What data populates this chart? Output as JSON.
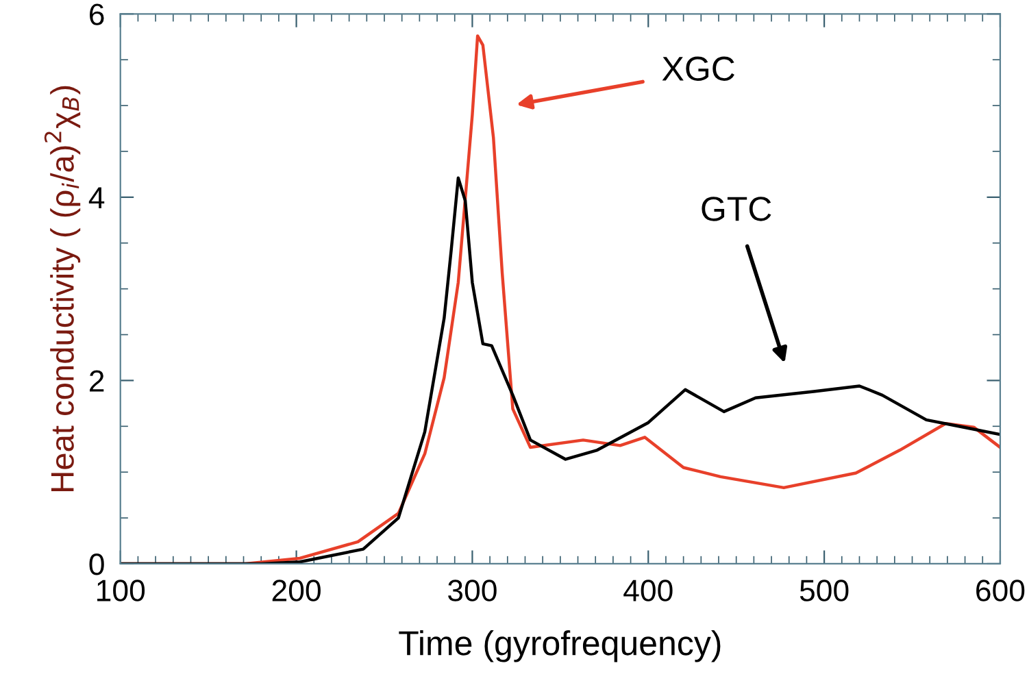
{
  "chart_data": {
    "type": "line",
    "xlabel": "Time (gyrofrequency)",
    "ylabel": "Heat conductivity ( (ρ$_{i}$/a)$^{2}$χ$_{B}$)",
    "xlim": [
      100,
      600
    ],
    "ylim": [
      0,
      6
    ],
    "xticks": [
      100,
      200,
      300,
      400,
      500,
      600
    ],
    "yticks": [
      0,
      2,
      4,
      6
    ],
    "grid": false,
    "legend": false,
    "marker": "none",
    "line_style": "solid",
    "series": [
      {
        "color": "#e8402a",
        "x": [
          100,
          171,
          202,
          235,
          258,
          273,
          284,
          292,
          300,
          303,
          306,
          312,
          317,
          323,
          333,
          363,
          384,
          398,
          420,
          441,
          477,
          518,
          543,
          569,
          585,
          600
        ],
        "values": [
          0,
          0,
          0.06,
          0.24,
          0.55,
          1.2,
          2.03,
          3.07,
          4.9,
          5.76,
          5.66,
          4.65,
          3.17,
          1.69,
          1.27,
          1.35,
          1.29,
          1.38,
          1.05,
          0.95,
          0.83,
          0.99,
          1.24,
          1.53,
          1.49,
          1.27
        ]
      },
      {
        "color": "#000000",
        "x": [
          100,
          180,
          202,
          238,
          258,
          273,
          284,
          288,
          292,
          296,
          300,
          306,
          311,
          323,
          333,
          353,
          371,
          400,
          421,
          443,
          461,
          494,
          520,
          533,
          558,
          574,
          600
        ],
        "values": [
          0,
          0,
          0.02,
          0.16,
          0.5,
          1.44,
          2.68,
          3.42,
          4.21,
          3.96,
          3.07,
          2.4,
          2.38,
          1.84,
          1.35,
          1.14,
          1.24,
          1.54,
          1.9,
          1.66,
          1.81,
          1.88,
          1.94,
          1.84,
          1.57,
          1.51,
          1.41
        ]
      }
    ],
    "annotations": [
      "XGC",
      "GTC"
    ]
  }
}
